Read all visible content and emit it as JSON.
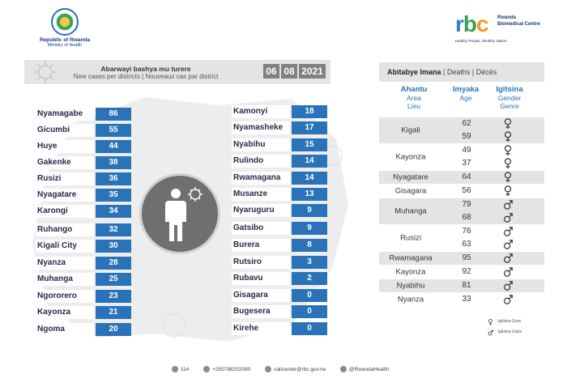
{
  "logo_left": {
    "line1": "Republic of Rwanda",
    "line2": "Ministry of Health"
  },
  "logo_right": {
    "r": "r",
    "b": "b",
    "c": "c",
    "name": "Rwanda Biomedical Centre",
    "tagline": "Healthy People, Wealthy Nation"
  },
  "header": {
    "title": "Abarwayi bashya mu turere",
    "subtitle": "New cases per districts  |  Nouveaux cas par district",
    "date_day": "06",
    "date_month": "08",
    "date_year": "2021"
  },
  "cases_left": [
    {
      "district": "Nyamagabe",
      "cases": "86"
    },
    {
      "district": "Gicumbi",
      "cases": "55"
    },
    {
      "district": "Huye",
      "cases": "44"
    },
    {
      "district": "Gakenke",
      "cases": "38"
    },
    {
      "district": "Rusizi",
      "cases": "36"
    },
    {
      "district": "Nyagatare",
      "cases": "35"
    },
    {
      "district": "Karongi",
      "cases": "34"
    },
    {
      "district": "Ruhango",
      "cases": "32"
    },
    {
      "district": "Kigali City",
      "cases": "30"
    },
    {
      "district": "Nyanza",
      "cases": "28"
    },
    {
      "district": "Muhanga",
      "cases": "25"
    },
    {
      "district": "Ngororero",
      "cases": "23"
    },
    {
      "district": "Kayonza",
      "cases": "21"
    },
    {
      "district": "Ngoma",
      "cases": "20"
    }
  ],
  "cases_right": [
    {
      "district": "Kamonyi",
      "cases": "18"
    },
    {
      "district": "Nyamasheke",
      "cases": "17"
    },
    {
      "district": "Nyabihu",
      "cases": "15"
    },
    {
      "district": "Rulindo",
      "cases": "14"
    },
    {
      "district": "Rwamagana",
      "cases": "14"
    },
    {
      "district": "Musanze",
      "cases": "13"
    },
    {
      "district": "Nyaruguru",
      "cases": "9"
    },
    {
      "district": "Gatsibo",
      "cases": "9"
    },
    {
      "district": "Burera",
      "cases": "8"
    },
    {
      "district": "Rutsiro",
      "cases": "3"
    },
    {
      "district": "Rubavu",
      "cases": "2"
    },
    {
      "district": "Gisagara",
      "cases": "0"
    },
    {
      "district": "Bugesera",
      "cases": "0"
    },
    {
      "district": "Kirehe",
      "cases": "0"
    }
  ],
  "deaths": {
    "header_rw": "Abitabye Imana",
    "header_rest": " | Deaths | Décès",
    "col_place": {
      "h1": "Ahantu",
      "h2": "Area",
      "h3": "Lieu"
    },
    "col_age": {
      "h1": "Imyaka",
      "h2": "Age"
    },
    "col_gender": {
      "h1": "Igitsina",
      "h2": "Gender",
      "h3": "Genre"
    },
    "groups": [
      {
        "district": "Kigali",
        "entries": [
          {
            "age": "62",
            "sex": "female"
          },
          {
            "age": "59",
            "sex": "female"
          }
        ]
      },
      {
        "district": "Kayonza",
        "entries": [
          {
            "age": "49",
            "sex": "female"
          },
          {
            "age": "37",
            "sex": "female"
          }
        ]
      },
      {
        "district": "Nyagatare",
        "entries": [
          {
            "age": "64",
            "sex": "female"
          }
        ]
      },
      {
        "district": "Gisagara",
        "entries": [
          {
            "age": "56",
            "sex": "female"
          }
        ]
      },
      {
        "district": "Muhanga",
        "entries": [
          {
            "age": "79",
            "sex": "male"
          },
          {
            "age": "68",
            "sex": "male"
          }
        ]
      },
      {
        "district": "Rusizi",
        "entries": [
          {
            "age": "76",
            "sex": "male"
          },
          {
            "age": "63",
            "sex": "male"
          }
        ]
      },
      {
        "district": "Rwamagana",
        "entries": [
          {
            "age": "95",
            "sex": "male"
          }
        ]
      },
      {
        "district": "Kayonza",
        "entries": [
          {
            "age": "92",
            "sex": "male"
          }
        ]
      },
      {
        "district": "Nyabihu",
        "entries": [
          {
            "age": "81",
            "sex": "male"
          }
        ]
      },
      {
        "district": "Nyanza",
        "entries": [
          {
            "age": "33",
            "sex": "male"
          }
        ]
      }
    ],
    "legend_female": ": Igitsina Gore",
    "legend_male": ": Igitsina Gabo"
  },
  "footer": {
    "phone_short": "114",
    "phone_long": "+250788202080",
    "email": "callcenter@rbc.gov.rw",
    "social": "@RwandaHealth"
  },
  "colors": {
    "accent_blue": "#2b73b8",
    "band_grey": "#e3e4e6",
    "date_grey": "#7f8081"
  }
}
